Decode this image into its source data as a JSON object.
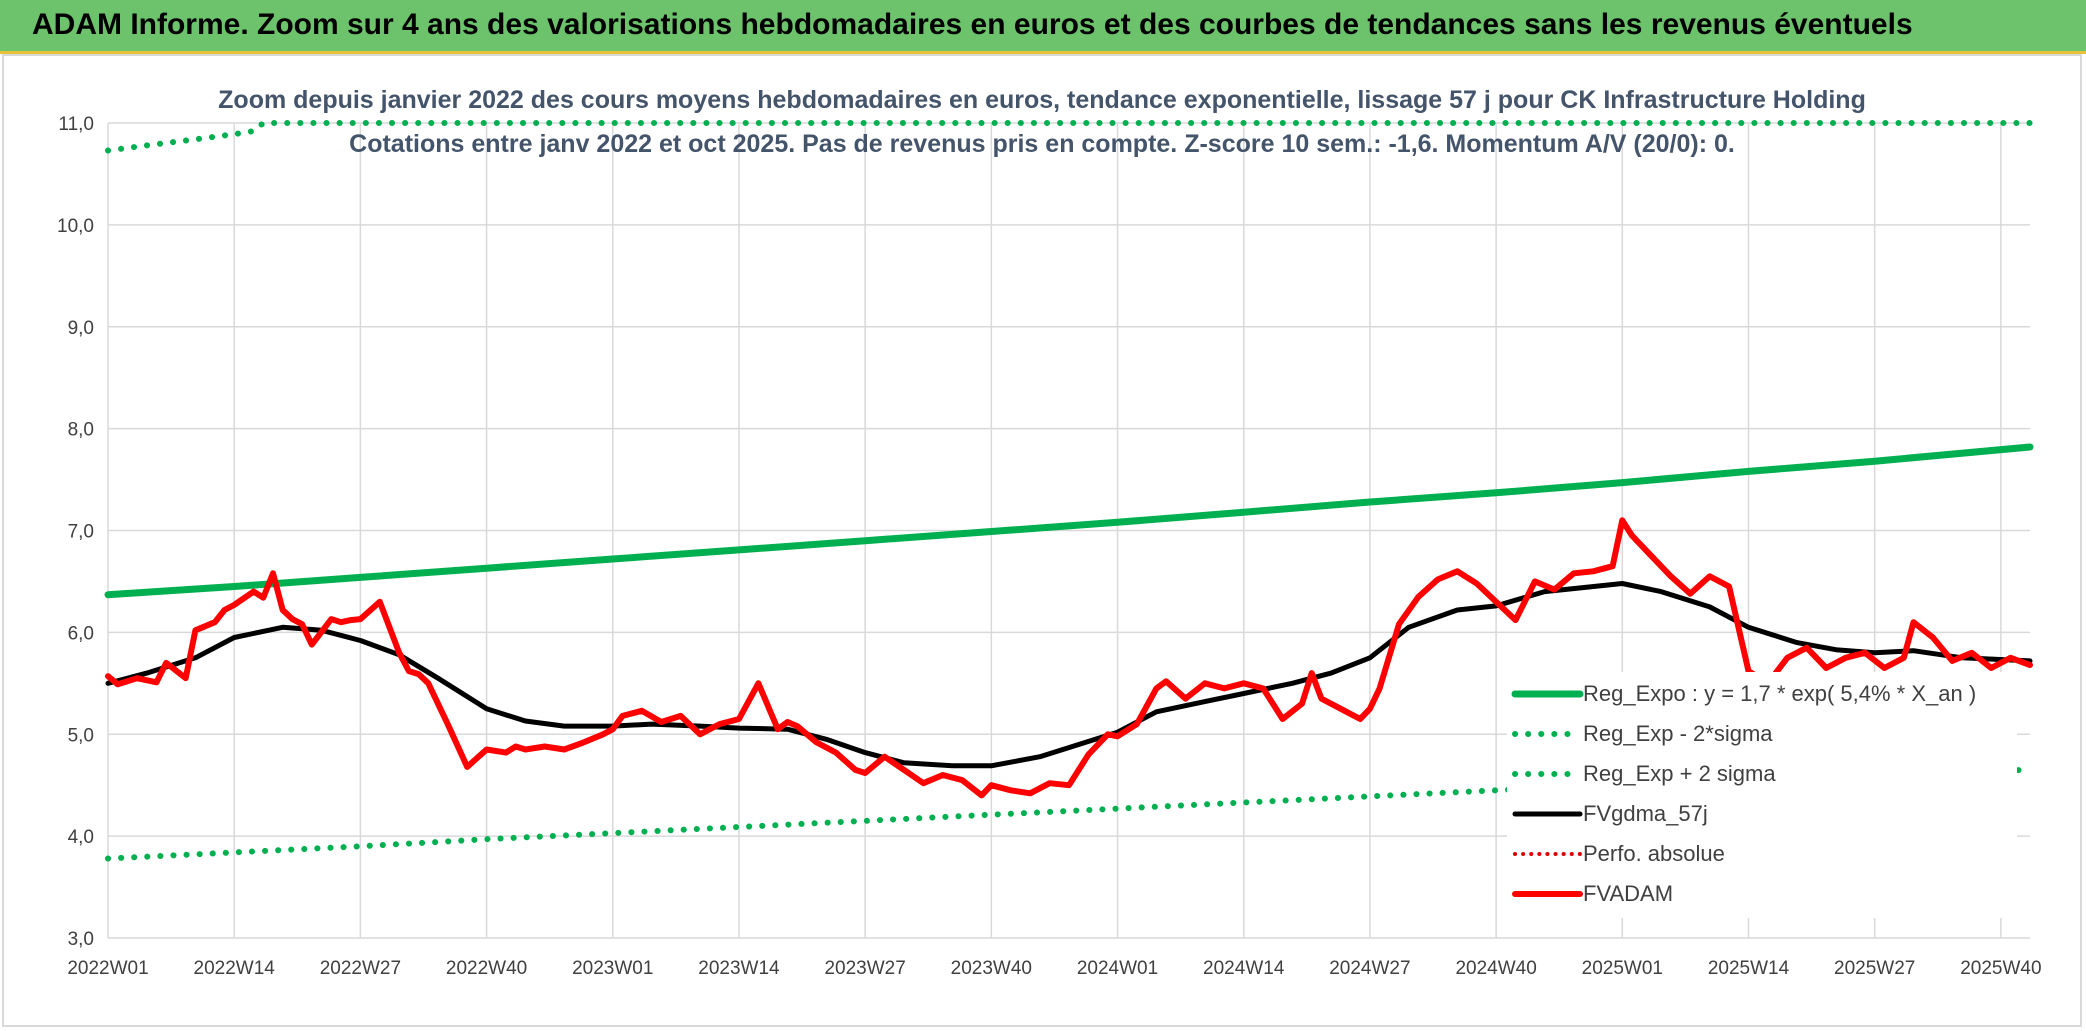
{
  "banner": {
    "title": "ADAM Informe. Zoom sur 4 ans des valorisations hebdomadaires en euros et des courbes de tendances sans les revenus éventuels"
  },
  "colors": {
    "banner_bg": "#6cc36b",
    "reg_expo": "#00b050",
    "reg_bands": "#00b050",
    "fvgdma": "#000000",
    "perfo": "#e00000",
    "fvadam": "#ff0000",
    "grid": "#d9d9d9",
    "text": "#404040",
    "title_text": "#44546a"
  },
  "chart_data": {
    "type": "line",
    "title": "Zoom depuis janvier 2022 des cours moyens hebdomadaires en euros, tendance exponentielle, lissage 57 j pour CK Infrastructure Holding",
    "subtitle": "Cotations entre janv 2022 et oct 2025. Pas de revenus pris en compte. Z-score 10 sem.: -1,6. Momentum A/V (20/0): 0.",
    "xlabel": "",
    "ylabel": "",
    "ylim": [
      3.0,
      11.0
    ],
    "y_ticks": [
      "3,0",
      "4,0",
      "5,0",
      "6,0",
      "7,0",
      "8,0",
      "9,0",
      "10,0",
      "11,0"
    ],
    "x_ticks": [
      "2022W01",
      "2022W14",
      "2022W27",
      "2022W40",
      "2023W01",
      "2023W14",
      "2023W27",
      "2023W40",
      "2024W01",
      "2024W14",
      "2024W27",
      "2024W40",
      "2025W01",
      "2025W14",
      "2025W27",
      "2025W40"
    ],
    "grid": true,
    "legend_position": "bottom-right",
    "legend": [
      "Reg_Expo : y = 1,7 * exp( 5,4% *  X_an )",
      "Reg_Exp - 2*sigma",
      "Reg_Exp + 2 sigma",
      "FVgdma_57j",
      "Perfo. absolue",
      "FVADAM"
    ],
    "series": [
      {
        "name": "Reg_Expo : y = 1,7 * exp( 5,4% *  X_an )",
        "style": "solid-thick",
        "x": [
          "2022W01",
          "2022W14",
          "2022W27",
          "2022W40",
          "2023W01",
          "2023W14",
          "2023W27",
          "2023W40",
          "2024W01",
          "2024W14",
          "2024W27",
          "2024W40",
          "2025W01",
          "2025W14",
          "2025W27",
          "2025W43"
        ],
        "values": [
          6.37,
          6.45,
          6.54,
          6.63,
          6.72,
          6.81,
          6.9,
          6.99,
          7.08,
          7.18,
          7.28,
          7.37,
          7.47,
          7.58,
          7.68,
          7.82
        ]
      },
      {
        "name": "Reg_Exp - 2*sigma",
        "style": "dotted",
        "x": [
          "2022W01",
          "2022W14",
          "2022W27",
          "2022W40",
          "2023W01",
          "2023W14",
          "2023W27",
          "2023W40",
          "2024W01",
          "2024W14",
          "2024W27",
          "2024W40",
          "2025W01",
          "2025W14",
          "2025W27",
          "2025W43"
        ],
        "values": [
          3.78,
          3.84,
          3.9,
          3.97,
          4.03,
          4.09,
          4.15,
          4.21,
          4.27,
          4.33,
          4.39,
          4.45,
          4.51,
          4.57,
          4.62,
          4.65
        ]
      },
      {
        "name": "Reg_Exp + 2 sigma",
        "style": "dotted",
        "x": [
          "2022W01",
          "2022W05",
          "2022W10",
          "2022W14",
          "2022W16",
          "2022W17",
          "2025W03",
          "2025W43"
        ],
        "values": [
          10.73,
          10.78,
          10.84,
          10.89,
          10.92,
          11.0,
          11.0,
          11.0
        ]
      },
      {
        "name": "FVgdma_57j",
        "style": "solid",
        "x": [
          "2022W01",
          "2022W05",
          "2022W10",
          "2022W14",
          "2022W19",
          "2022W23",
          "2022W27",
          "2022W31",
          "2022W35",
          "2022W40",
          "2022W44",
          "2022W48",
          "2023W01",
          "2023W05",
          "2023W10",
          "2023W14",
          "2023W19",
          "2023W23",
          "2023W27",
          "2023W31",
          "2023W36",
          "2023W40",
          "2023W45",
          "2024W01",
          "2024W05",
          "2024W10",
          "2024W14",
          "2024W19",
          "2024W23",
          "2024W27",
          "2024W31",
          "2024W36",
          "2024W40",
          "2024W45",
          "2025W01",
          "2025W05",
          "2025W10",
          "2025W14",
          "2025W19",
          "2025W23",
          "2025W27",
          "2025W31",
          "2025W36",
          "2025W43"
        ],
        "values": [
          5.5,
          5.6,
          5.75,
          5.95,
          6.05,
          6.02,
          5.92,
          5.78,
          5.55,
          5.25,
          5.13,
          5.08,
          5.08,
          5.1,
          5.08,
          5.06,
          5.05,
          4.95,
          4.82,
          4.72,
          4.69,
          4.69,
          4.78,
          5.02,
          5.22,
          5.32,
          5.4,
          5.5,
          5.6,
          5.75,
          6.05,
          6.22,
          6.26,
          6.4,
          6.48,
          6.4,
          6.25,
          6.05,
          5.9,
          5.83,
          5.8,
          5.82,
          5.75,
          5.72
        ]
      },
      {
        "name": "Perfo. absolue",
        "style": "dotted",
        "x": [],
        "values": []
      },
      {
        "name": "FVADAM",
        "style": "solid-thick",
        "x": [
          "2022W01",
          "2022W02",
          "2022W04",
          "2022W06",
          "2022W07",
          "2022W09",
          "2022W10",
          "2022W12",
          "2022W13",
          "2022W14",
          "2022W16",
          "2022W17",
          "2022W18",
          "2022W19",
          "2022W20",
          "2022W21",
          "2022W22",
          "2022W24",
          "2022W25",
          "2022W26",
          "2022W27",
          "2022W29",
          "2022W31",
          "2022W32",
          "2022W33",
          "2022W34",
          "2022W36",
          "2022W38",
          "2022W40",
          "2022W42",
          "2022W43",
          "2022W44",
          "2022W46",
          "2022W48",
          "2022W50",
          "2022W52",
          "2023W01",
          "2023W02",
          "2023W04",
          "2023W06",
          "2023W08",
          "2023W10",
          "2023W12",
          "2023W14",
          "2023W16",
          "2023W18",
          "2023W19",
          "2023W20",
          "2023W22",
          "2023W24",
          "2023W26",
          "2023W27",
          "2023W29",
          "2023W31",
          "2023W33",
          "2023W35",
          "2023W37",
          "2023W39",
          "2023W40",
          "2023W42",
          "2023W44",
          "2023W46",
          "2023W48",
          "2023W50",
          "2023W52",
          "2024W01",
          "2024W03",
          "2024W05",
          "2024W06",
          "2024W08",
          "2024W10",
          "2024W12",
          "2024W14",
          "2024W16",
          "2024W18",
          "2024W20",
          "2024W21",
          "2024W22",
          "2024W24",
          "2024W26",
          "2024W27",
          "2024W28",
          "2024W30",
          "2024W32",
          "2024W34",
          "2024W36",
          "2024W38",
          "2024W40",
          "2024W42",
          "2024W44",
          "2024W46",
          "2024W48",
          "2024W50",
          "2024W52",
          "2025W01",
          "2025W02",
          "2025W04",
          "2025W06",
          "2025W08",
          "2025W10",
          "2025W12",
          "2025W14",
          "2025W16",
          "2025W18",
          "2025W20",
          "2025W22",
          "2025W24",
          "2025W26",
          "2025W28",
          "2025W30",
          "2025W31",
          "2025W33",
          "2025W35",
          "2025W37",
          "2025W39",
          "2025W41",
          "2025W43"
        ],
        "values": [
          5.57,
          5.49,
          5.55,
          5.51,
          5.7,
          5.55,
          6.02,
          6.1,
          6.22,
          6.27,
          6.4,
          6.34,
          6.58,
          6.22,
          6.13,
          6.08,
          5.88,
          6.13,
          6.1,
          6.12,
          6.13,
          6.3,
          5.8,
          5.62,
          5.59,
          5.5,
          5.1,
          4.68,
          4.85,
          4.82,
          4.88,
          4.85,
          4.88,
          4.85,
          4.92,
          5.0,
          5.05,
          5.18,
          5.23,
          5.12,
          5.18,
          5.0,
          5.1,
          5.15,
          5.5,
          5.05,
          5.12,
          5.08,
          4.92,
          4.82,
          4.65,
          4.62,
          4.78,
          4.65,
          4.52,
          4.6,
          4.55,
          4.4,
          4.5,
          4.45,
          4.42,
          4.52,
          4.5,
          4.8,
          5.0,
          4.98,
          5.1,
          5.45,
          5.52,
          5.35,
          5.5,
          5.45,
          5.5,
          5.45,
          5.15,
          5.3,
          5.6,
          5.35,
          5.25,
          5.15,
          5.25,
          5.45,
          6.08,
          6.35,
          6.52,
          6.6,
          6.48,
          6.3,
          6.12,
          6.5,
          6.42,
          6.58,
          6.6,
          6.65,
          7.1,
          6.95,
          6.75,
          6.55,
          6.38,
          6.55,
          6.45,
          5.62,
          5.5,
          5.75,
          5.85,
          5.65,
          5.75,
          5.8,
          5.65,
          5.75,
          6.1,
          5.95,
          5.72,
          5.8,
          5.65,
          5.75,
          5.68
        ]
      }
    ]
  }
}
